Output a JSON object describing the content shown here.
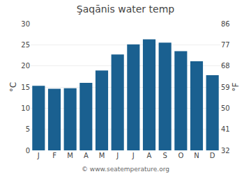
{
  "chart_data": {
    "type": "bar",
    "title": "Şaqānis water temp",
    "categories": [
      "J",
      "F",
      "M",
      "A",
      "M",
      "J",
      "J",
      "A",
      "S",
      "O",
      "N",
      "D"
    ],
    "values": [
      15.3,
      14.6,
      14.7,
      16.0,
      18.9,
      22.7,
      25.1,
      26.3,
      25.5,
      23.5,
      21.1,
      17.8
    ],
    "color": "#1a6090",
    "ylabel": "°C",
    "y2label": "°F",
    "ylim": [
      0,
      30
    ],
    "yticks": [
      0,
      5,
      10,
      15,
      20,
      25,
      30
    ],
    "y2lim": [
      32,
      86
    ],
    "y2ticks": [
      32,
      41,
      50,
      59,
      68,
      77,
      86
    ],
    "grid": true,
    "annotations": [
      "© www.seatemperature.org"
    ]
  }
}
